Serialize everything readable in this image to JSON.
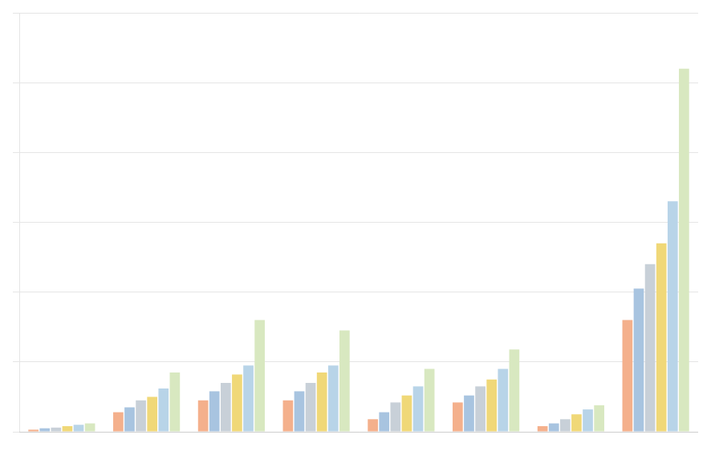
{
  "chart_data": {
    "type": "bar",
    "categories": [
      null,
      null,
      null,
      null,
      null,
      null,
      null,
      null
    ],
    "series": [
      {
        "color": "#f4b08c",
        "values": [
          3,
          28,
          45,
          45,
          18,
          42,
          8,
          160
        ]
      },
      {
        "color": "#a8c4e0",
        "values": [
          5,
          35,
          58,
          58,
          28,
          52,
          12,
          205
        ]
      },
      {
        "color": "#c8d0d8",
        "values": [
          6,
          45,
          70,
          70,
          42,
          65,
          18,
          240
        ]
      },
      {
        "color": "#f0d878",
        "values": [
          8,
          50,
          82,
          85,
          52,
          75,
          25,
          270
        ]
      },
      {
        "color": "#b8d4e8",
        "values": [
          10,
          62,
          95,
          95,
          65,
          90,
          32,
          330
        ]
      },
      {
        "color": "#d8e8c0",
        "values": [
          12,
          85,
          160,
          145,
          90,
          118,
          38,
          520
        ]
      }
    ],
    "ylim": [
      0,
      600
    ],
    "yticks": [
      0,
      100,
      200,
      300,
      400,
      500,
      600
    ],
    "grid": true,
    "tick_labels": false
  }
}
